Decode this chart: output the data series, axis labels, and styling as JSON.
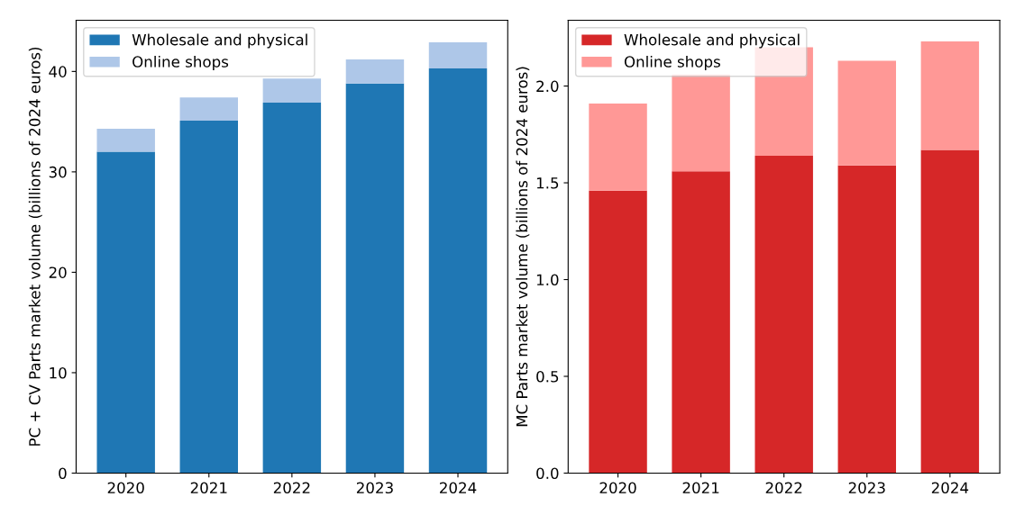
{
  "chart_data": [
    {
      "type": "bar",
      "stacked": true,
      "categories": [
        "2020",
        "2021",
        "2022",
        "2023",
        "2024"
      ],
      "ylabel": "PC + CV Parts market volume (billions of 2024 euros)",
      "ylim": [
        0,
        45.1
      ],
      "yticks": [
        0,
        10,
        20,
        30,
        40
      ],
      "legend": "top left",
      "grid": false,
      "series": [
        {
          "name": "Wholesale and physical",
          "color": "#1f77b4",
          "values": [
            32.0,
            35.1,
            36.9,
            38.8,
            40.3
          ]
        },
        {
          "name": "Online shops",
          "color": "#aec7e8",
          "values": [
            2.3,
            2.3,
            2.4,
            2.4,
            2.6
          ]
        }
      ]
    },
    {
      "type": "bar",
      "stacked": true,
      "categories": [
        "2020",
        "2021",
        "2022",
        "2023",
        "2024"
      ],
      "ylabel": "MC Parts market volume (billions of 2024 euros)",
      "ylim": [
        0,
        2.34
      ],
      "yticks": [
        {
          "value": 0,
          "label": "0.0"
        },
        0.5,
        {
          "value": 1,
          "label": "1.0"
        },
        1.5,
        {
          "value": 2,
          "label": "2.0"
        }
      ],
      "legend": "top left",
      "grid": false,
      "series": [
        {
          "name": "Wholesale and physical",
          "color": "#d62728",
          "values": [
            1.46,
            1.56,
            1.64,
            1.59,
            1.67
          ]
        },
        {
          "name": "Online shops",
          "color": "#ff9896",
          "values": [
            0.45,
            0.5,
            0.56,
            0.54,
            0.56
          ]
        }
      ]
    }
  ]
}
